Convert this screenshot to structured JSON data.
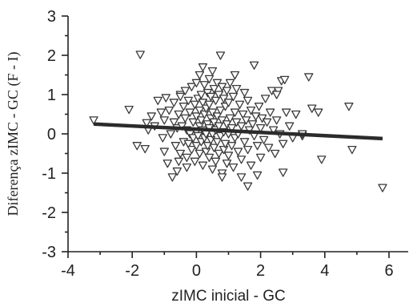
{
  "chart_data": {
    "type": "scatter",
    "title": "",
    "xlabel": "zIMC inicial - GC",
    "ylabel": "Diferença zIMC -  GC (F - I)",
    "xlim": [
      -4,
      7
    ],
    "ylim": [
      -3,
      3
    ],
    "xticks": [
      "-4",
      "-2",
      "0",
      "2",
      "4",
      "6"
    ],
    "yticks": [
      "-3",
      "-2",
      "-1",
      "0",
      "1",
      "2",
      "3"
    ],
    "grid": false,
    "marker": "inverted-triangle",
    "trendline": {
      "x": [
        -3.2,
        5.8
      ],
      "y": [
        0.25,
        -0.12
      ]
    },
    "points": [
      [
        -3.2,
        0.35
      ],
      [
        -2.1,
        0.62
      ],
      [
        -1.75,
        2.02
      ],
      [
        -1.85,
        -0.3
      ],
      [
        -1.6,
        -0.38
      ],
      [
        -1.55,
        0.28
      ],
      [
        -1.5,
        0.1
      ],
      [
        -1.4,
        0.45
      ],
      [
        -1.3,
        0.2
      ],
      [
        -1.2,
        0.85
      ],
      [
        -1.1,
        0.55
      ],
      [
        -1.05,
        -0.1
      ],
      [
        -1.0,
        0.35
      ],
      [
        -0.95,
        0.92
      ],
      [
        -0.9,
        -0.75
      ],
      [
        -0.85,
        0.6
      ],
      [
        -0.8,
        0.0
      ],
      [
        -0.75,
        -1.1
      ],
      [
        -0.7,
        0.3
      ],
      [
        -0.7,
        0.8
      ],
      [
        -0.65,
        -0.3
      ],
      [
        -0.6,
        0.15
      ],
      [
        -0.6,
        -0.95
      ],
      [
        -0.55,
        0.5
      ],
      [
        -0.5,
        1.0
      ],
      [
        -0.5,
        -0.5
      ],
      [
        -0.45,
        0.2
      ],
      [
        -0.4,
        0.7
      ],
      [
        -0.4,
        -0.2
      ],
      [
        -0.35,
        1.1
      ],
      [
        -0.35,
        0.4
      ],
      [
        -0.3,
        -0.6
      ],
      [
        -0.3,
        0.1
      ],
      [
        -0.25,
        0.85
      ],
      [
        -0.25,
        -0.25
      ],
      [
        -0.2,
        0.55
      ],
      [
        -0.2,
        0.0
      ],
      [
        -0.15,
        1.2
      ],
      [
        -0.15,
        -0.4
      ],
      [
        -0.1,
        0.3
      ],
      [
        -0.1,
        -0.1
      ],
      [
        -0.05,
        0.75
      ],
      [
        -0.05,
        -0.7
      ],
      [
        0.0,
        1.3
      ],
      [
        0.0,
        0.45
      ],
      [
        0.0,
        0.05
      ],
      [
        0.0,
        -0.3
      ],
      [
        0.05,
        0.9
      ],
      [
        0.05,
        -0.05
      ],
      [
        0.1,
        1.5
      ],
      [
        0.1,
        0.6
      ],
      [
        0.1,
        0.2
      ],
      [
        0.1,
        -0.5
      ],
      [
        0.15,
        1.0
      ],
      [
        0.15,
        0.35
      ],
      [
        0.15,
        -0.2
      ],
      [
        0.2,
        0.8
      ],
      [
        0.2,
        0.1
      ],
      [
        0.2,
        -0.8
      ],
      [
        0.25,
        1.25
      ],
      [
        0.25,
        0.5
      ],
      [
        0.25,
        -0.1
      ],
      [
        0.3,
        0.65
      ],
      [
        0.3,
        0.0
      ],
      [
        0.3,
        -0.45
      ],
      [
        0.35,
        1.05
      ],
      [
        0.35,
        0.25
      ],
      [
        0.35,
        -0.3
      ],
      [
        0.4,
        1.4
      ],
      [
        0.4,
        0.75
      ],
      [
        0.4,
        0.15
      ],
      [
        0.4,
        -0.6
      ],
      [
        0.45,
        0.95
      ],
      [
        0.45,
        0.4
      ],
      [
        0.45,
        -0.15
      ],
      [
        0.5,
        1.6
      ],
      [
        0.5,
        0.55
      ],
      [
        0.5,
        0.0
      ],
      [
        0.5,
        -0.9
      ],
      [
        0.55,
        1.15
      ],
      [
        0.55,
        0.3
      ],
      [
        0.55,
        -0.35
      ],
      [
        0.6,
        0.85
      ],
      [
        0.6,
        0.1
      ],
      [
        0.6,
        -0.7
      ],
      [
        0.65,
        1.3
      ],
      [
        0.65,
        0.45
      ],
      [
        0.65,
        -0.2
      ],
      [
        0.7,
        1.0
      ],
      [
        0.7,
        0.2
      ],
      [
        0.7,
        -0.5
      ],
      [
        0.75,
        2.0
      ],
      [
        0.75,
        0.6
      ],
      [
        0.75,
        -0.05
      ],
      [
        0.8,
        1.2
      ],
      [
        0.8,
        0.35
      ],
      [
        0.8,
        -1.0
      ],
      [
        0.85,
        0.9
      ],
      [
        0.85,
        0.05
      ],
      [
        0.85,
        -0.4
      ],
      [
        0.9,
        0.7
      ],
      [
        0.9,
        -0.25
      ],
      [
        0.95,
        1.1
      ],
      [
        0.95,
        0.25
      ],
      [
        0.95,
        -0.75
      ],
      [
        1.0,
        0.8
      ],
      [
        1.0,
        0.0
      ],
      [
        1.0,
        -0.55
      ],
      [
        1.05,
        1.3
      ],
      [
        1.05,
        0.4
      ],
      [
        1.1,
        0.15
      ],
      [
        1.1,
        -0.3
      ],
      [
        1.15,
        0.95
      ],
      [
        1.15,
        -0.85
      ],
      [
        1.2,
        0.55
      ],
      [
        1.2,
        -0.1
      ],
      [
        1.25,
        1.15
      ],
      [
        1.25,
        0.3
      ],
      [
        1.3,
        0.0
      ],
      [
        1.3,
        -0.45
      ],
      [
        1.35,
        0.75
      ],
      [
        1.4,
        0.2
      ],
      [
        1.4,
        -0.65
      ],
      [
        1.45,
        0.5
      ],
      [
        1.5,
        1.05
      ],
      [
        1.5,
        -0.2
      ],
      [
        1.55,
        0.35
      ],
      [
        1.6,
        0.85
      ],
      [
        1.6,
        -0.4
      ],
      [
        1.65,
        0.1
      ],
      [
        1.7,
        0.6
      ],
      [
        1.7,
        -0.8
      ],
      [
        1.75,
        0.25
      ],
      [
        1.8,
        1.75
      ],
      [
        1.8,
        -0.05
      ],
      [
        1.85,
        0.45
      ],
      [
        1.9,
        -0.3
      ],
      [
        1.95,
        0.7
      ],
      [
        2.0,
        0.15
      ],
      [
        2.0,
        -0.6
      ],
      [
        2.05,
        0.4
      ],
      [
        2.1,
        -0.15
      ],
      [
        2.15,
        0.9
      ],
      [
        2.2,
        0.3
      ],
      [
        2.25,
        -0.35
      ],
      [
        2.3,
        0.55
      ],
      [
        2.35,
        1.1
      ],
      [
        2.4,
        0.1
      ],
      [
        2.45,
        -0.5
      ],
      [
        2.5,
        0.35
      ],
      [
        2.55,
        1.1
      ],
      [
        2.6,
        0.0
      ],
      [
        2.65,
        1.35
      ],
      [
        2.7,
        -0.25
      ],
      [
        2.75,
        1.38
      ],
      [
        2.7,
        -0.98
      ],
      [
        2.8,
        0.55
      ],
      [
        2.9,
        0.2
      ],
      [
        3.0,
        -0.1
      ],
      [
        3.1,
        0.5
      ],
      [
        3.3,
        -0.05
      ],
      [
        3.5,
        1.45
      ],
      [
        3.6,
        0.65
      ],
      [
        3.8,
        0.55
      ],
      [
        3.9,
        -0.65
      ],
      [
        4.75,
        0.7
      ],
      [
        4.85,
        -0.4
      ],
      [
        5.8,
        -1.37
      ],
      [
        1.6,
        -1.33
      ],
      [
        1.9,
        -1.05
      ],
      [
        -0.3,
        -0.85
      ],
      [
        -0.55,
        -0.7
      ],
      [
        1.4,
        -1.1
      ],
      [
        0.8,
        -1.1
      ],
      [
        2.5,
        1.0
      ],
      [
        3.3,
        0.0
      ],
      [
        0.2,
        1.7
      ],
      [
        -0.5,
        0.95
      ],
      [
        1.2,
        1.5
      ],
      [
        -1.0,
        -0.45
      ]
    ]
  }
}
